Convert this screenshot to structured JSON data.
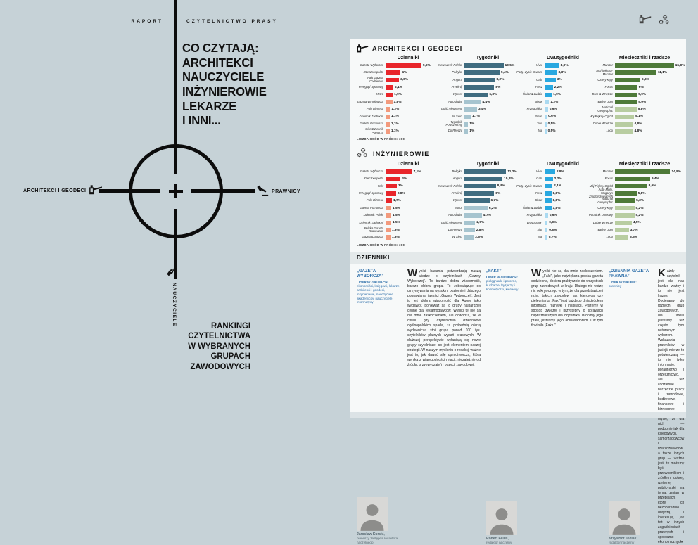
{
  "header": {
    "left": "RAPORT",
    "right": "CZYTELNICTWO PRASY"
  },
  "title": "CO CZYTAJĄ:\nARCHITEKCI\nNAUCZYCIELE\nINŻYNIEROWIE\nLEKARZE\nI INNI...",
  "crosshair": {
    "left_label": "ARCHITEKCI I GEODECI",
    "right_label": "PRAWNICY",
    "bottom_label": "NAUCZYCIELE"
  },
  "subtitle": "RANKINGI\nCZYTELNICTWA\nW WYBRANYCH\nGRUPACH\nZAWODOWYCH",
  "colors": {
    "background": "#c6d2d7",
    "panel": "#f7f9f9",
    "band": "#e4e9ea",
    "accent_blue": "#2b6da8",
    "bar_red": "#e8262b",
    "bar_red_light": "#f29a7d",
    "bar_steel": "#3f6c80",
    "bar_steel_light": "#a6c4cf",
    "bar_blue": "#29a8e0",
    "bar_blue_light": "#abdaf1",
    "bar_green": "#4e7a39",
    "bar_green_light": "#b8cda1"
  },
  "chart_data": [
    {
      "type": "bar",
      "group": "ARCHITEKCI I GEODECI",
      "icon": "drafting-tool",
      "sample_note": "LICZBA OSÓB W PRÓBIE: 300",
      "columns": [
        {
          "title": "Dzienniki",
          "palette": "red",
          "dark_count": 5,
          "unit": "%",
          "labels": [
            "Gazeta Wyborcza",
            "Rzeczpospolita",
            "Fakt Gazeta Codzienna",
            "Przegląd Sportowy",
            "Metro",
            "Gazeta Wrocławska",
            "Puls Biznesu",
            "Dziennik Zachodni",
            "Gazeta Pomorska",
            "Głos Dziennik Pomorza"
          ],
          "values": [
            9.6,
            4,
            3.6,
            2.1,
            1.9,
            1.8,
            1.2,
            1.1,
            1.1,
            1.1
          ]
        },
        {
          "title": "Tygodniki",
          "palette": "steel",
          "dark_count": 5,
          "unit": "%",
          "labels": [
            "Newsweek Polska",
            "Polityka",
            "Angora",
            "Przekrój",
            "Wprost",
            "Auto Świat",
            "Gość Niedzielny",
            "W Sieci",
            "Tygodnik Powszechny",
            "Do Rzeczy"
          ],
          "values": [
            10.5,
            9.4,
            8.2,
            8,
            6.3,
            4.4,
            3.4,
            1.7,
            1,
            1
          ]
        },
        {
          "title": "Dwutygodniki",
          "palette": "blue",
          "dark_count": 5,
          "unit": "%",
          "labels": [
            "Viva!",
            "Party. Życie Gwiazd",
            "Gala",
            "Flesz",
            "Świat & Ludzie",
            "Show",
            "Przyjaciółka",
            "Bravo",
            "Tina",
            "Naj"
          ],
          "values": [
            3.9,
            3.3,
            3,
            2.2,
            1.9,
            1.2,
            0.9,
            0.6,
            0.5,
            0.5
          ]
        },
        {
          "title": "Miesięczniki i rzadsze",
          "palette": "green",
          "dark_count": 6,
          "unit": "%",
          "labels": [
            "Murator",
            "Architektura-Murator",
            "Cztery Kąty",
            "Focus",
            "Dom & Wnętrze",
            "Ładny Dom",
            "National Geographic",
            "Mój Piękny Ogród",
            "Dobre Wnętrze",
            "Logo"
          ],
          "values": [
            15.8,
            11.1,
            6.8,
            6,
            5.9,
            5.9,
            5.8,
            5.1,
            4.8,
            4.8
          ]
        }
      ]
    },
    {
      "type": "bar",
      "group": "INŻYNIEROWIE",
      "icon": "gears",
      "sample_note": "LICZBA OSÓB W PRÓBIE: 300",
      "columns": [
        {
          "title": "Dzienniki",
          "palette": "red",
          "dark_count": 5,
          "unit": "%",
          "labels": [
            "Gazeta Wyborcza",
            "Rzeczpospolita",
            "Fakt",
            "Przegląd Sportowy",
            "Puls Biznesu",
            "Gazeta Pomorska",
            "Dziennik Polski",
            "Dziennik Zachodni",
            "Polska Gazeta Krakowska",
            "Gazeta Lubuska"
          ],
          "values": [
            7.1,
            4,
            3,
            2.8,
            1.7,
            1.5,
            1.5,
            1.5,
            1.3,
            1.3
          ]
        },
        {
          "title": "Tygodniki",
          "palette": "steel",
          "dark_count": 5,
          "unit": "%",
          "labels": [
            "Polityka",
            "Angora",
            "Newsweek Polska",
            "Przekrój",
            "Wprost",
            "Motor",
            "Auto Świat",
            "Gość Niedzielny",
            "Do Rzeczy",
            "W Sieci"
          ],
          "values": [
            11.2,
            10.2,
            8.4,
            8,
            6.7,
            6.2,
            4.7,
            2.9,
            2.8,
            2.5
          ]
        },
        {
          "title": "Dwutygodniki",
          "palette": "blue",
          "dark_count": 6,
          "unit": "%",
          "labels": [
            "Viva!",
            "Gala",
            "Party. Życie Gwiazd",
            "Flesz",
            "Show",
            "Świat & Ludzie",
            "Przyjaciółka",
            "Bravo Sport",
            "Tina",
            "Naj"
          ],
          "values": [
            2.8,
            2.2,
            2.1,
            1.8,
            1.8,
            1.8,
            0.9,
            0.8,
            0.8,
            0.7
          ]
        },
        {
          "title": "Miesięczniki i rzadsze",
          "palette": "green",
          "dark_count": 5,
          "unit": "%",
          "labels": [
            "Murator",
            "Focus",
            "Mój Piękny Ogród",
            "Auto Moto. Magazyn Zmotoryzowanych",
            "National Geographic",
            "Cztery Kąty",
            "Poradnik Domowy",
            "Dobre Wnętrze",
            "Ładny Dom",
            "Logo"
          ],
          "values": [
            14.8,
            9.4,
            8.6,
            5.8,
            5.3,
            5.2,
            5.2,
            4.5,
            3.7,
            3.6
          ]
        }
      ]
    }
  ],
  "editorial": {
    "band_title": "DZIENNIKI",
    "continuation_mark": "→",
    "columns": [
      {
        "paper": "„GAZETA WYBORCZA”",
        "leader_label": "LIDER W GRUPACH:",
        "leader_groups": "ekonomiści, księgowi, lekarze, architekci i geodeci, inżynierowie, nauczyciele akademiccy, nauczyciele, informatycy",
        "person": "Jarosław Kurski,",
        "role": "pierwszy zastępca redaktora naczelnego",
        "dropcap": "W",
        "body": "yniki badania potwierdzają naszą wiedzę o czytelnikach „Gazety Wyborczej”. To bardzo dobra wiadomość, bardzo dobra grupa. To zobowiązuje do utrzymywania na wysokim poziomie i dalszego poprawiania jakości „Gazety Wyborczej”. Jest to też dobra wiadomość dla Agory jako wydawcy, ponieważ są to grupy najbardziej cenne dla reklamodawców. Wyniki te nie są dla mnie zaskoczeniem, ale dowodzą, że w chwili gdy czytelnictwo dzienników ogólnopolskich spada, za pośrednią ofertą wydawniczą stoi grupa ponad 100 tys. czytelników płatnych wydań prasowych. W dłuższej perspektywie wyłaniają się nowe grupy czytelnicze, co jest elementem naszej strategii. W naszym myśleniu o redakcji ważne jest to, jak dawać siłę opiniotwórczą, która wynika z wiarygodności relacji, niezależnie od źródła, przyzwyczajeń i pozycji zawodowej."
      },
      {
        "paper": "„FAKT”",
        "leader_label": "LIDER W GRUPACH:",
        "leader_groups": "pielęgniarki i położne, kucharze, fryzjerzy i kosmetyczki, kierowcy",
        "person": "Robert Feluś,",
        "role": "redaktor naczelny",
        "dropcap": "W",
        "body": "yniki nie są dla mnie zaskoczeniem. „Fakt”, jako największa polska gazeta codzienna, dociera praktycznie do wszystkich grup zawodowych w kraju. Dlatego nie widzę nic odkrywczego w tym, że dla przedstawicieli m.in. takich zawodów jak kierowca czy pielęgniarka „Fakt” jest każdego dnia źródłem informacji, rozrywki i inspiracji. Piszemy w sposób zwięzły i przystępny o sprawach najważniejszych dla czytelnika. Bronimy jego praw, jesteśmy jego ambasadorem. I w tym tkwi siła „Faktu”."
      },
      {
        "paper": "„DZIENNIK GAZETA PRAWNA”",
        "leader_label": "LIDER W GRUPIE:",
        "leader_groups": "prawnicy",
        "person": "Krzysztof Jedlak,",
        "role": "redaktor naczelny",
        "dropcap": "K",
        "continuation": true,
        "body": "ażdy czytelnik jest dla nas bardzo ważny i to nie jest frazes. Docieramy do różnych grup zawodowych, dla wielu jesteśmy też często tym naturalnym wyborem. Wskazania prawników w jakiejś mierze to potwierdzają — to nie tylko informacje, poradnictwo i orzecznictwo, ale też codzienne narzędzie pracy i zawodowe, budżetowe, finansowe i biznesowe źródła wiedzy. Myślę, że dla nich — podobnie jak dla księgowych, samorządowców i rzeczoznawców, a także innych grup — ważne jest, że możemy być przewodnikiem i źródłem dobrej, rzetelnej publicystyki na temat zmian w przepisach, które ich bezpośrednio dotyczą i interesują, jak też w innych zagadnieniach prawnych i społeczno-ekonomicznych."
      }
    ]
  }
}
